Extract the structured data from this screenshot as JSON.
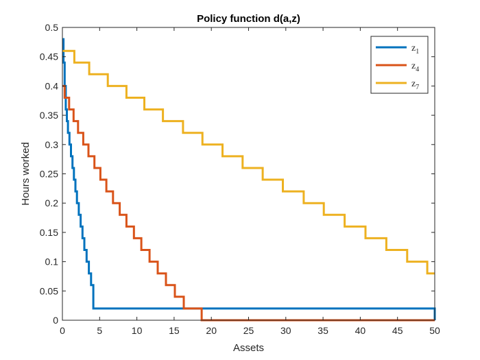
{
  "chart_data": {
    "type": "line",
    "title": "Policy function d(a,z)",
    "xlabel": "Assets",
    "ylabel": "Hours worked",
    "xlim": [
      0,
      50
    ],
    "ylim": [
      0,
      0.5
    ],
    "xticks": [
      "0",
      "5",
      "10",
      "15",
      "20",
      "25",
      "30",
      "35",
      "40",
      "45",
      "50"
    ],
    "yticks": [
      "0",
      "0.05",
      "0.1",
      "0.15",
      "0.2",
      "0.25",
      "0.3",
      "0.35",
      "0.4",
      "0.45",
      "0.5"
    ],
    "grid": false,
    "legend_position": "top-right",
    "series": [
      {
        "name": "z1",
        "legend_base": "z",
        "legend_sub": "1",
        "color": "#0072BD",
        "x": [
          0,
          0.15,
          0.3,
          0.45,
          0.6,
          0.75,
          0.95,
          1.15,
          1.35,
          1.55,
          1.75,
          1.95,
          2.2,
          2.45,
          2.7,
          2.95,
          3.25,
          3.55,
          3.85,
          4.15,
          50
        ],
        "y": [
          0.48,
          0.44,
          0.4,
          0.36,
          0.34,
          0.32,
          0.3,
          0.28,
          0.26,
          0.24,
          0.22,
          0.2,
          0.18,
          0.16,
          0.14,
          0.12,
          0.1,
          0.08,
          0.06,
          0.02,
          0
        ]
      },
      {
        "name": "z4",
        "legend_base": "z",
        "legend_sub": "4",
        "color": "#D95319",
        "x": [
          0,
          0.3,
          0.9,
          1.5,
          2.1,
          2.8,
          3.5,
          4.3,
          5.1,
          5.9,
          6.8,
          7.7,
          8.6,
          9.6,
          10.6,
          11.7,
          12.8,
          13.9,
          15.1,
          16.3,
          17.5,
          18.7,
          50
        ],
        "y": [
          0.4,
          0.38,
          0.36,
          0.34,
          0.32,
          0.3,
          0.28,
          0.26,
          0.24,
          0.22,
          0.2,
          0.18,
          0.16,
          0.14,
          0.12,
          0.1,
          0.08,
          0.06,
          0.04,
          0.02,
          0.02,
          0,
          0
        ]
      },
      {
        "name": "z7",
        "legend_base": "z",
        "legend_sub": "7",
        "color": "#EDB120",
        "x": [
          0,
          1.6,
          3.6,
          6.1,
          8.6,
          11.0,
          13.5,
          16.2,
          18.8,
          21.5,
          24.2,
          26.9,
          29.6,
          32.4,
          35.1,
          37.9,
          40.7,
          43.5,
          46.3,
          49.0,
          50
        ],
        "y": [
          0.46,
          0.44,
          0.42,
          0.4,
          0.38,
          0.36,
          0.34,
          0.32,
          0.3,
          0.28,
          0.26,
          0.24,
          0.22,
          0.2,
          0.18,
          0.16,
          0.14,
          0.12,
          0.1,
          0.08,
          0.08
        ]
      }
    ]
  }
}
